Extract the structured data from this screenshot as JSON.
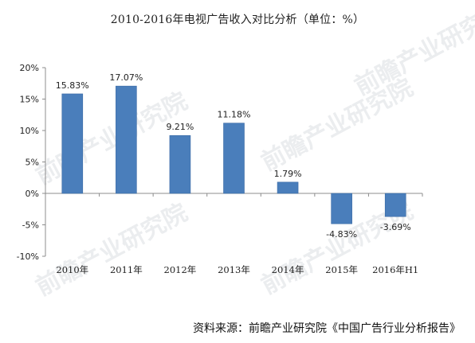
{
  "chart_data": {
    "type": "bar",
    "title": "2010-2016年电视广告收入对比分析（单位：%）",
    "categories": [
      "2010年",
      "2011年",
      "2012年",
      "2013年",
      "2014年",
      "2015年",
      "2016年H1"
    ],
    "values": [
      15.83,
      17.07,
      9.21,
      11.18,
      1.79,
      -4.83,
      -3.69
    ],
    "data_labels": [
      "15.83%",
      "17.07%",
      "9.21%",
      "11.18%",
      "1.79%",
      "-4.83%",
      "-3.69%"
    ],
    "ylim": [
      -10,
      20
    ],
    "yticks": [
      -10,
      -5,
      0,
      5,
      10,
      15,
      20
    ],
    "ytick_labels": [
      "-10%",
      "-5%",
      "0%",
      "5%",
      "10%",
      "15%",
      "20%"
    ],
    "xlabel": "",
    "ylabel": "",
    "grid": false,
    "legend": "none",
    "bar_color": "#4a7ebb"
  },
  "watermark": {
    "text": "前瞻产业研究院"
  },
  "source": {
    "text": "资料来源：前瞻产业研究院《中国广告行业分析报告》"
  }
}
